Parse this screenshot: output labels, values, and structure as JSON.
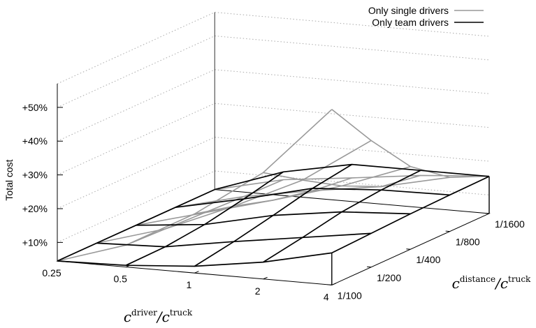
{
  "chart_data": {
    "type": "surface3d",
    "zlabel": "Total cost",
    "x_axis": {
      "label_main": "c",
      "label_sup1": "driver",
      "label_sep": "/c",
      "label_sup2": "truck",
      "ticks": [
        "0.25",
        "0.5",
        "1",
        "2",
        "4"
      ]
    },
    "y_axis": {
      "label_main": "c",
      "label_sup1": "distance",
      "label_sep": "/c",
      "label_sup2": "truck",
      "ticks": [
        "1/100",
        "1/200",
        "1/400",
        "1/800",
        "1/1600"
      ]
    },
    "z_axis": {
      "ticks": [
        "+10%",
        "+20%",
        "+30%",
        "+40%",
        "+50%"
      ],
      "tick_values": [
        10,
        20,
        30,
        40,
        50
      ],
      "zlim": [
        4.5,
        57
      ]
    },
    "grid": true,
    "legend_position": "top-right",
    "series": [
      {
        "name": "Only single drivers",
        "color": "#999999",
        "values": [
          [
            4.5,
            4.5,
            4.5,
            4.5,
            4.5
          ],
          [
            11,
            10.5,
            10,
            9.5,
            9.2
          ],
          [
            22,
            19,
            15.5,
            13,
            11.5
          ],
          [
            36,
            28.5,
            21.5,
            16,
            14
          ],
          [
            56.5,
            42,
            29,
            20.5,
            15.6
          ]
        ]
      },
      {
        "name": "Only team drivers",
        "color": "#000000",
        "values": [
          [
            4.5,
            4.5,
            4.5,
            4.5,
            4.5
          ],
          [
            5,
            5.2,
            6.5,
            8.8,
            11.5
          ],
          [
            6.5,
            8.5,
            11,
            13.7,
            15.5
          ],
          [
            9.5,
            11.5,
            13.8,
            15,
            15.5
          ],
          [
            14,
            14.5,
            15,
            15.3,
            15.5
          ]
        ]
      }
    ]
  }
}
